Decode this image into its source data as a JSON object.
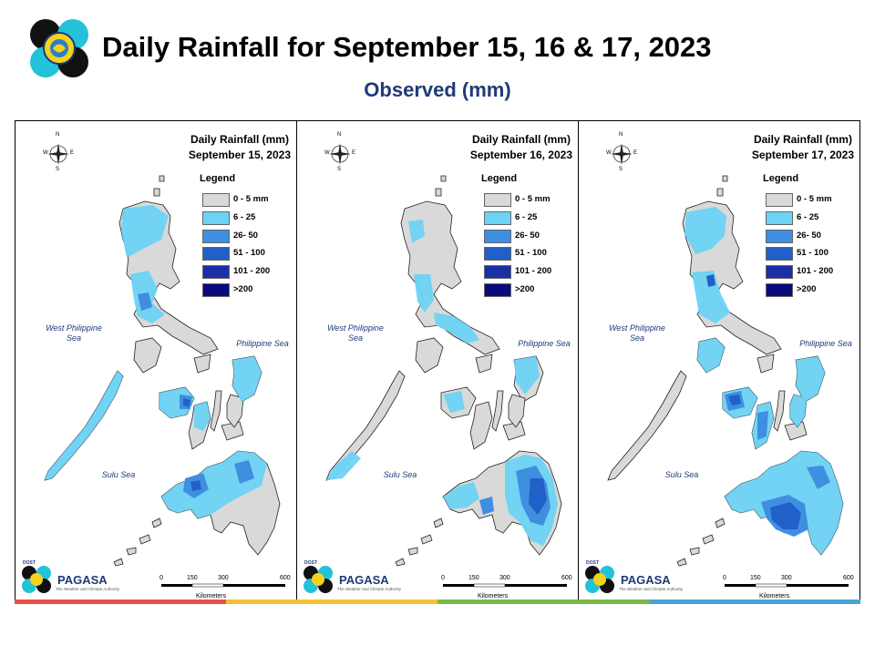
{
  "header": {
    "title": "Daily Rainfall for September 15, 16 & 17, 2023",
    "subtitle": "Observed (mm)"
  },
  "panels": [
    {
      "title_line1": "Daily Rainfall (mm)",
      "title_line2": "September 15, 2023"
    },
    {
      "title_line1": "Daily Rainfall (mm)",
      "title_line2": "September 16, 2023"
    },
    {
      "title_line1": "Daily Rainfall (mm)",
      "title_line2": "September 17, 2023"
    }
  ],
  "legend": {
    "title": "Legend",
    "items": [
      {
        "label": "0 - 5 mm",
        "color": "#d9d9d9"
      },
      {
        "label": "6 - 25",
        "color": "#6dd3f5"
      },
      {
        "label": "26- 50",
        "color": "#3f8fe0"
      },
      {
        "label": "51 - 100",
        "color": "#2060c8"
      },
      {
        "label": "101 - 200",
        "color": "#1a2fa6"
      },
      {
        "label": ">200",
        "color": "#0a0a7a"
      }
    ]
  },
  "seas": {
    "west": "West Philippine Sea",
    "philippine": "Philippine Sea",
    "sulu": "Sulu Sea"
  },
  "compass": {
    "n": "N",
    "s": "S",
    "e": "E",
    "w": "W"
  },
  "scale": {
    "labels": [
      "0",
      "150",
      "300",
      "600"
    ],
    "unit": "Kilometers"
  },
  "branding": {
    "name": "PAGASA",
    "prefix": "DOST",
    "tagline": "The Weather and Climate Authority"
  },
  "footer_colors": [
    "#e8524a",
    "#f3c233",
    "#7bb84a",
    "#4aa3d8"
  ]
}
